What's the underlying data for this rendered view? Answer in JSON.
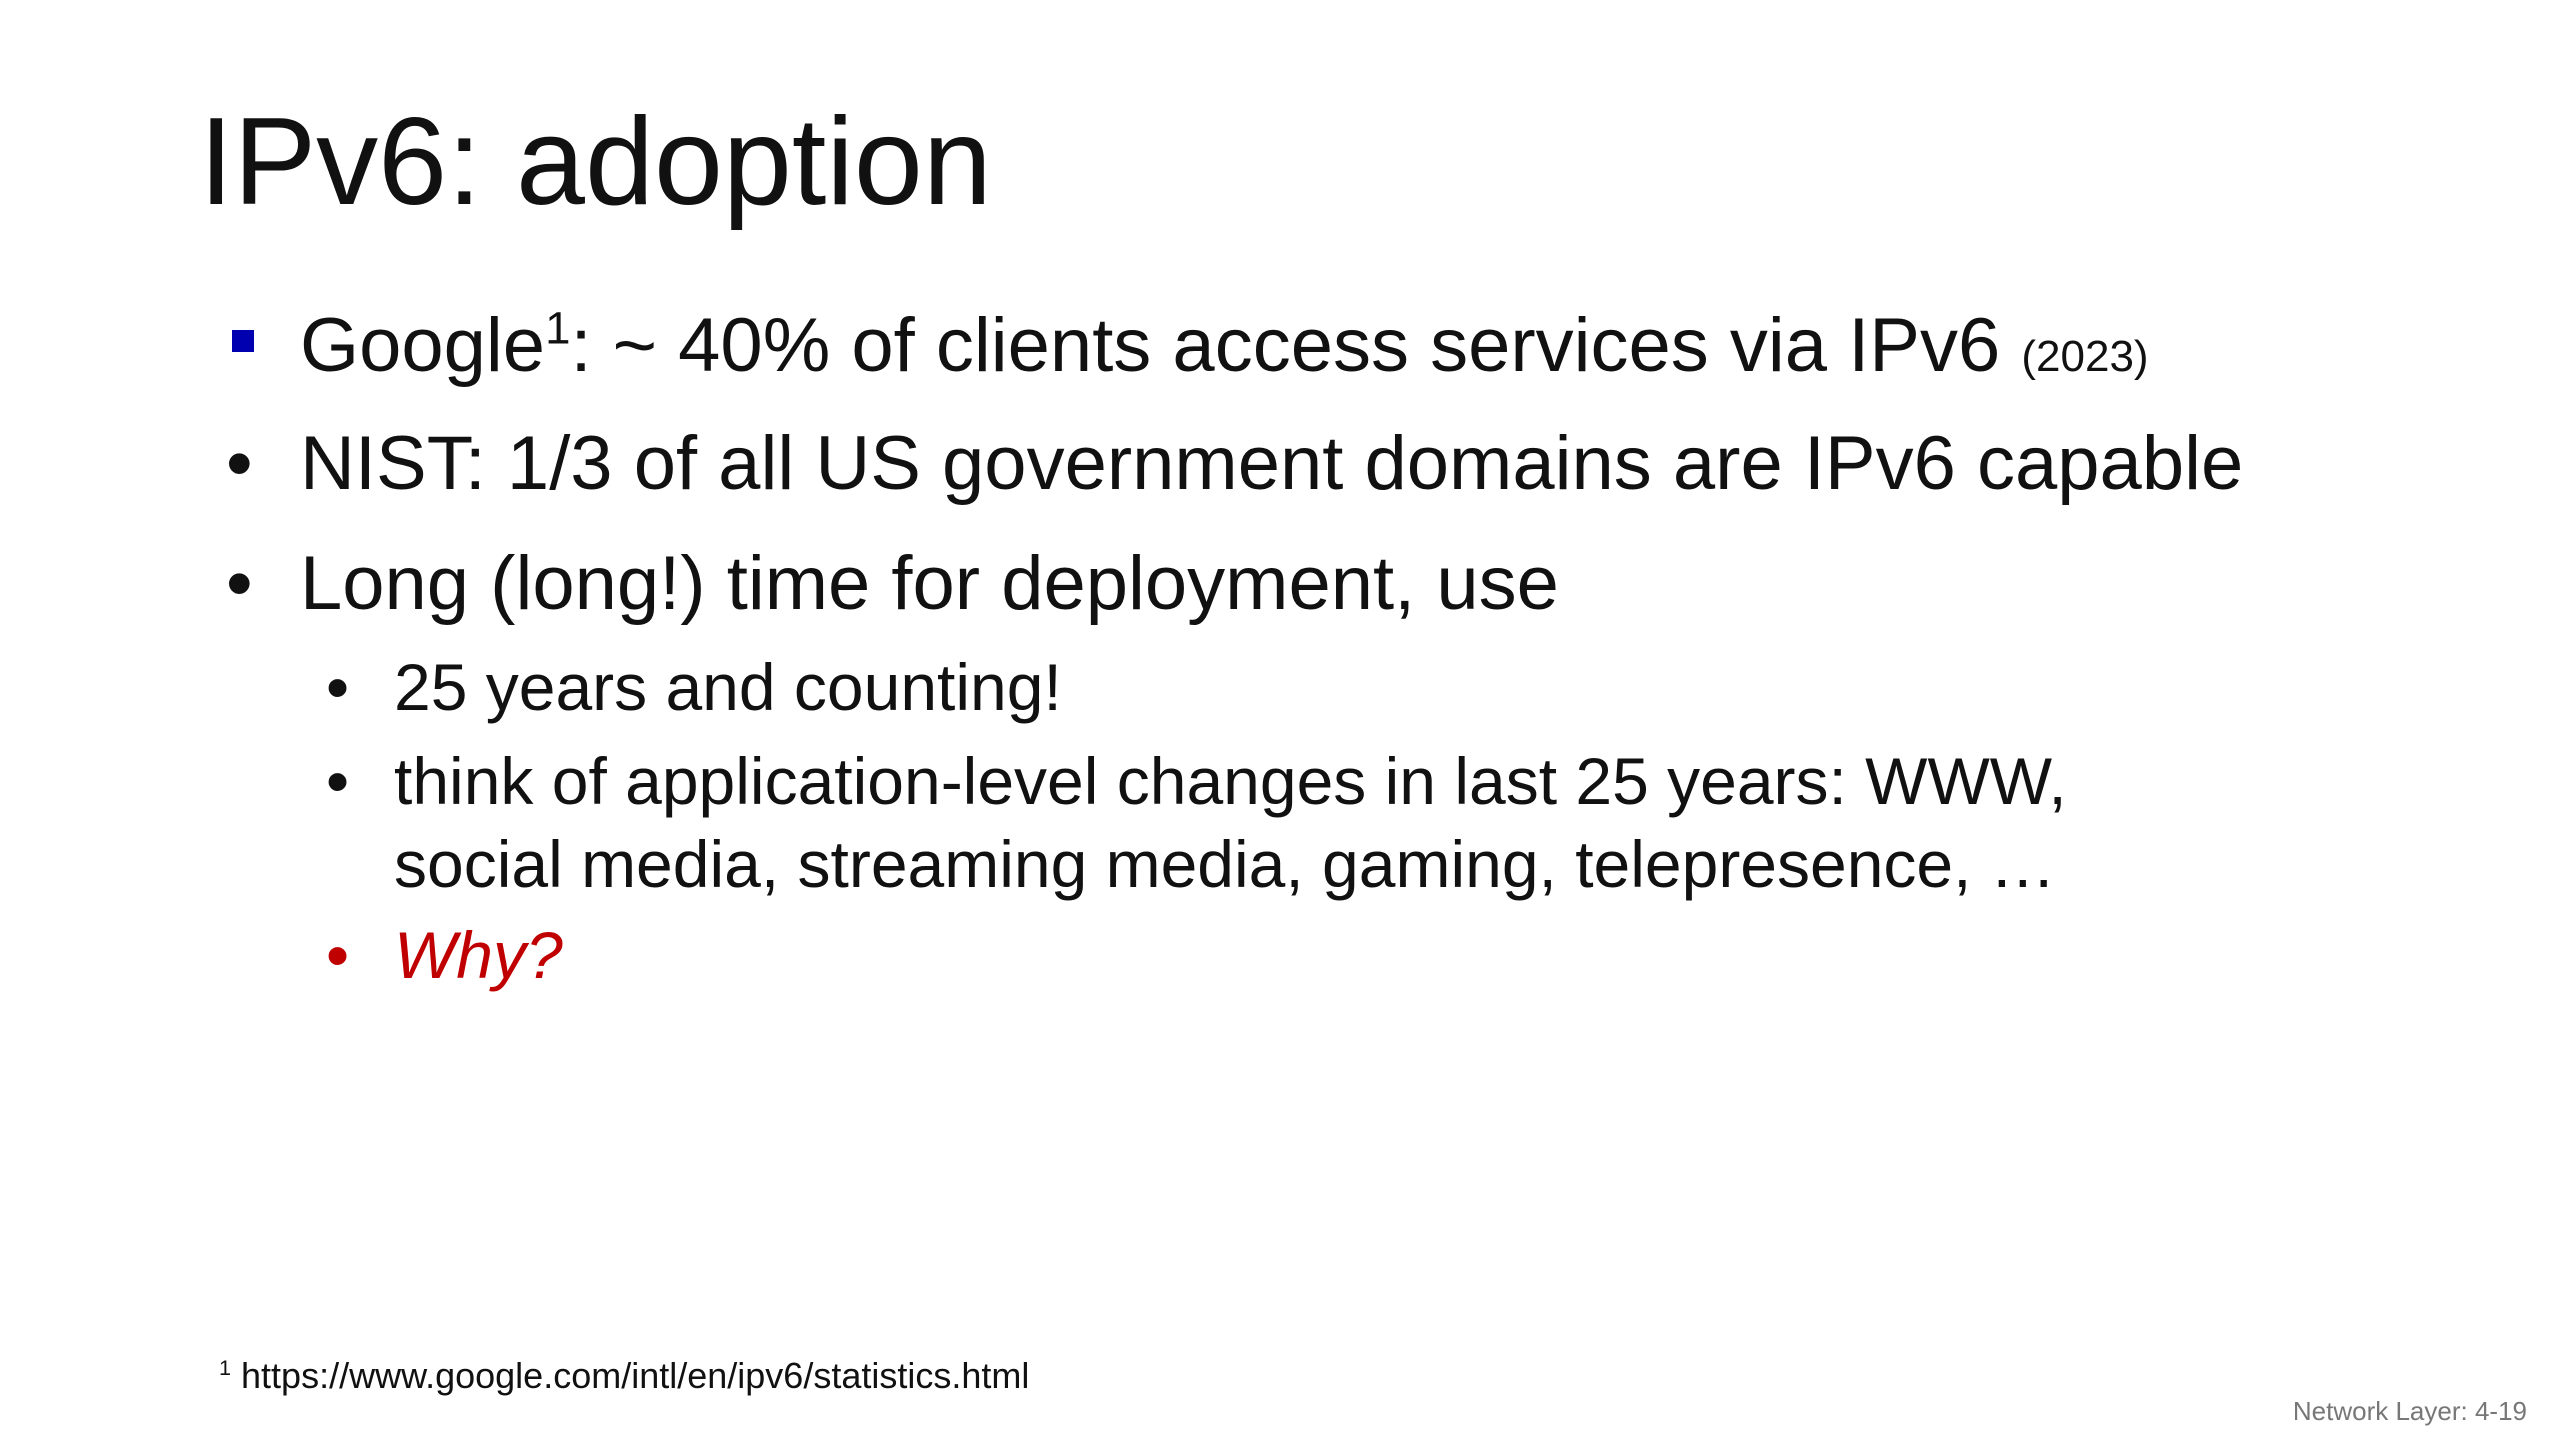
{
  "title": "IPv6: adoption",
  "bullets": [
    {
      "parts": [
        "Google",
        "1",
        ": ~ 40% of clients access services via IPv6",
        "(2023)"
      ]
    },
    {
      "text": "NIST: 1/3 of all US government domains are IPv6 capable"
    },
    {
      "text": "Long (long!) time for deployment, use",
      "sub": [
        {
          "text": "25 years and counting!"
        },
        {
          "lines": [
            "think of application-level changes in last 25 years: WWW,",
            "social media, streaming media, gaming, telepresence, …"
          ]
        },
        {
          "text": "Why?"
        }
      ]
    }
  ],
  "footnote": {
    "mark": "1",
    "text": "https://www.google.com/intl/en/ipv6/statistics.html"
  },
  "page_label": "Network Layer: 4-19"
}
